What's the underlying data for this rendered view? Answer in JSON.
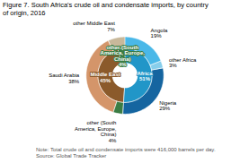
{
  "chart_data": {
    "type": "pie",
    "title": "Figure 7. South Africa's crude oil and condensate imports, by country\nof origin, 2016",
    "annotations": [
      "Note: Total crude oil and condensate imports were 416,000 barrels per day.",
      "Source: Global Trade Tracker"
    ],
    "data_labels": true,
    "series": [
      {
        "categories": [
          "Africa",
          "Middle East",
          "other (South\nAmerica, Europe,\nChina)"
        ],
        "values": [
          51,
          45,
          4
        ],
        "value_labels": [
          "51%",
          "45%",
          "4%"
        ],
        "colors": [
          "#2196c8",
          "#8b5a2b",
          "#3a7d44"
        ]
      },
      {
        "categories": [
          "Angola",
          "other Africa",
          "Nigeria",
          "other (South\nAmerica, Europe,\nChina)",
          "Saudi Arabia",
          "other Middle East"
        ],
        "values": [
          19,
          3,
          29,
          4,
          38,
          7
        ],
        "value_labels": [
          "19%",
          "3%",
          "29%",
          "4%",
          "38%",
          "7%"
        ],
        "colors": [
          "#4ab8e8",
          "#87ceeb",
          "#1565a0",
          "#3a7d44",
          "#d4956a",
          "#c8b89a"
        ]
      }
    ]
  }
}
